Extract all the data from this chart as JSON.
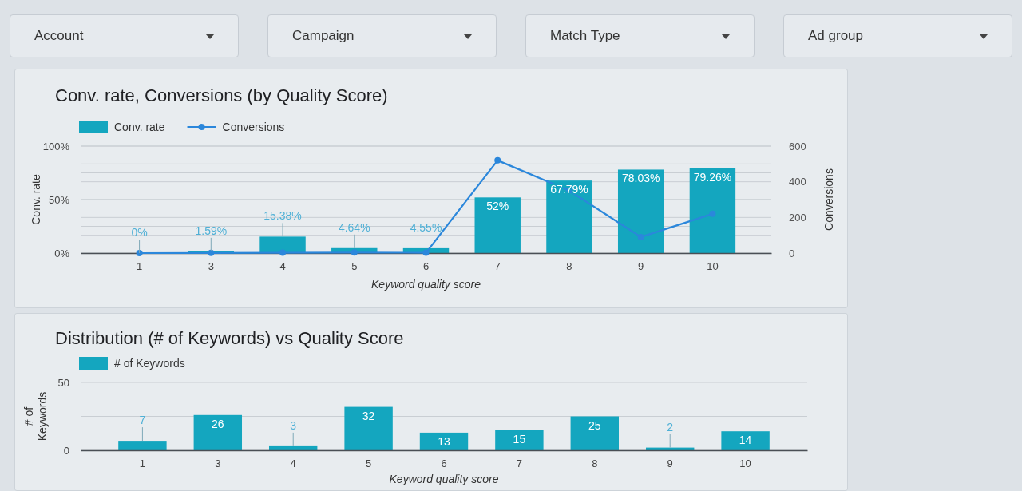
{
  "chart_data": [
    {
      "type": "other",
      "annotations": [
        "Account",
        "Campaign",
        "Match Type",
        "Ad group"
      ]
    },
    {
      "type": "bar",
      "title": "Conv. rate, Conversions (by Quality Score)",
      "xlabel": "Keyword quality score",
      "ylabel": "Conv. rate",
      "y2label": "Conversions",
      "categories": [
        "1",
        "3",
        "4",
        "5",
        "6",
        "7",
        "8",
        "9",
        "10"
      ],
      "series": [
        {
          "name": "Conv. rate",
          "type": "bar",
          "color": "#14a6bf",
          "values": [
            0,
            1.59,
            15.38,
            4.64,
            4.55,
            52,
            67.79,
            78.03,
            79.26
          ],
          "value_labels": [
            "0%",
            "1.59%",
            "15.38%",
            "4.64%",
            "4.55%",
            "52%",
            "67.79%",
            "78.03%",
            "79.26%"
          ]
        },
        {
          "name": "Conversions",
          "type": "line",
          "axis": "y2",
          "color": "#2b87db",
          "values": [
            0,
            1,
            2,
            3,
            2,
            520,
            350,
            90,
            220
          ]
        }
      ],
      "ylim": [
        0,
        100
      ],
      "yticks": [
        {
          "value": 0,
          "label": "0%"
        },
        {
          "value": 25,
          "label": null
        },
        {
          "value": 50,
          "label": "50%"
        },
        {
          "value": 75,
          "label": null
        },
        {
          "value": 100,
          "label": "100%"
        }
      ],
      "y2lim": [
        0,
        600
      ],
      "y2ticks": [
        0,
        {
          "value": 100,
          "label": null
        },
        200,
        {
          "value": 300,
          "label": null
        },
        400,
        {
          "value": 500,
          "label": null
        },
        600
      ],
      "grid": "y",
      "legend": "top left",
      "marker": "circle"
    },
    {
      "type": "bar",
      "title": "Distribution (# of Keywords) vs Quality Score",
      "xlabel": "Keyword quality score",
      "ylabel": "# of Keywords",
      "categories": [
        "1",
        "3",
        "4",
        "5",
        "6",
        "7",
        "8",
        "9",
        "10"
      ],
      "series": [
        {
          "name": "# of Keywords",
          "color": "#14a6bf",
          "values": [
            7,
            26,
            3,
            32,
            13,
            15,
            25,
            2,
            14
          ]
        }
      ],
      "ylim": [
        0,
        50
      ],
      "yticks": [
        0,
        {
          "value": 25,
          "label": null
        },
        50
      ],
      "grid": "y",
      "legend": "top left",
      "data_labels": true
    }
  ]
}
